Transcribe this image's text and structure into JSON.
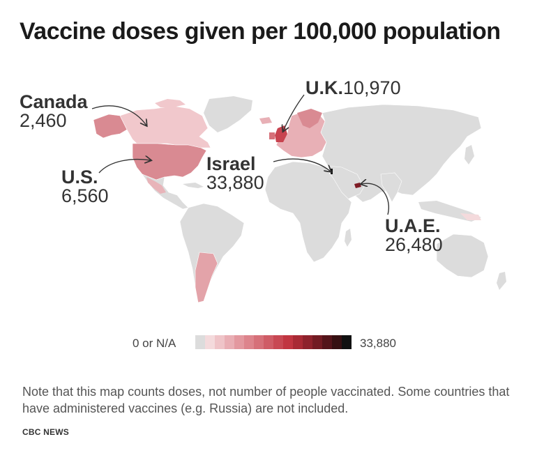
{
  "title": "Vaccine doses given per 100,000 population",
  "map": {
    "land_color": "#dcdcdc",
    "highlights": [
      {
        "country": "Canada",
        "value": "2,460",
        "color": "#f1c8cc"
      },
      {
        "country": "U.S.",
        "value": "6,560",
        "color": "#d98a92"
      },
      {
        "country": "U.K.",
        "value": "10,970",
        "color": "#c8434f"
      },
      {
        "country": "Israel",
        "value": "33,880",
        "color": "#111111"
      },
      {
        "country": "U.A.E.",
        "value": "26,480",
        "color": "#7e1b24"
      }
    ]
  },
  "callouts": {
    "canada": {
      "name": "Canada",
      "value": "2,460"
    },
    "us": {
      "name": "U.S.",
      "value": "6,560"
    },
    "uk": {
      "name": "U.K.",
      "value": "10,970"
    },
    "israel": {
      "name": "Israel",
      "value": "33,880"
    },
    "uae": {
      "name": "U.A.E.",
      "value": "26,480"
    }
  },
  "legend": {
    "min_label": "0 or N/A",
    "max_label": "33,880",
    "colors": [
      "#dcdcdc",
      "#f4dadc",
      "#efc4c8",
      "#e9aeb4",
      "#e3989f",
      "#dd848c",
      "#d67079",
      "#cf5c66",
      "#c84853",
      "#c13541",
      "#a92a35",
      "#8e222c",
      "#721b23",
      "#54141a",
      "#361012",
      "#111111"
    ]
  },
  "note": "Note that this map counts doses, not number of people vaccinated. Some countries that have administered vaccines (e.g. Russia) are not included.",
  "source": "CBC NEWS"
}
